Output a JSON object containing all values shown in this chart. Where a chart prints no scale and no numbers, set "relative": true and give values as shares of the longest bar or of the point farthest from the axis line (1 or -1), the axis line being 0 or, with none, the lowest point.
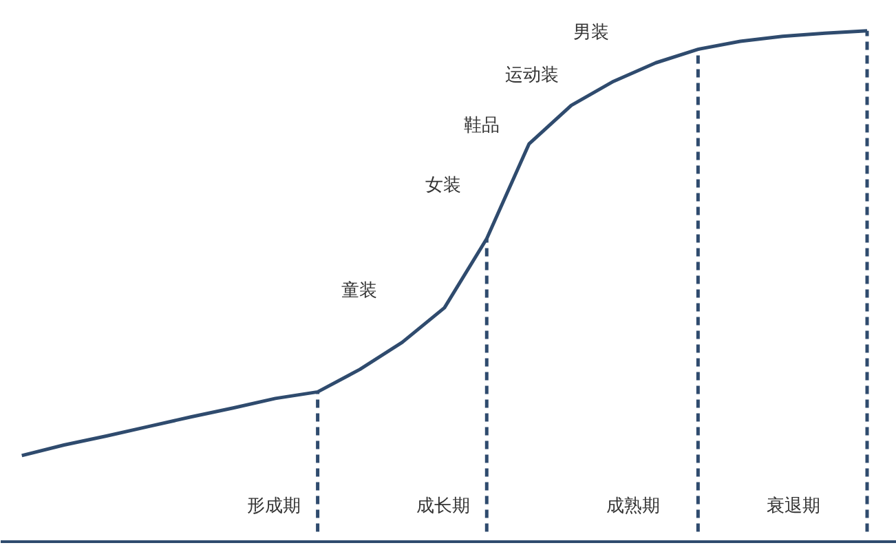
{
  "chart_data": {
    "type": "line",
    "relative": true,
    "line_style": "solid",
    "categories": [
      null,
      null,
      null,
      null,
      null,
      null,
      null,
      null,
      null,
      null,
      null,
      null,
      null,
      null,
      null,
      null,
      null,
      null,
      null,
      null,
      null
    ],
    "series": [
      {
        "color": "#2f4b6e",
        "values": [
          0.152,
          0.173,
          0.191,
          0.21,
          0.229,
          0.247,
          0.266,
          0.279,
          0.324,
          0.378,
          0.447,
          0.585,
          0.774,
          0.851,
          0.899,
          0.936,
          0.963,
          0.979,
          0.989,
          0.995,
          1
        ]
      }
    ],
    "annotations": [
      "童装",
      "女装",
      "鞋品",
      "运动装",
      "男装",
      "形成期",
      "成长期",
      "成熟期",
      "衰退期"
    ]
  }
}
